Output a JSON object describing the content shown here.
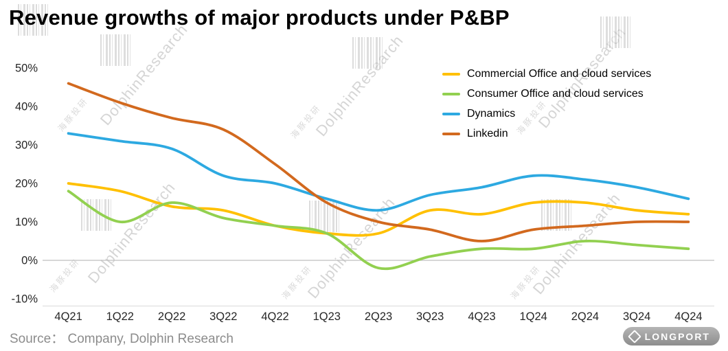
{
  "source_text": "Source： Company, Dolphin Research",
  "watermark": {
    "latin": "DolphinResearch",
    "cjk": "海豚投研"
  },
  "logo_text": "LONGPORT",
  "chart_data": {
    "type": "line",
    "title": "Revenue growths of major products under P&BP",
    "categories": [
      "4Q21",
      "1Q22",
      "2Q22",
      "3Q22",
      "4Q22",
      "1Q23",
      "2Q23",
      "3Q23",
      "4Q23",
      "1Q24",
      "2Q24",
      "3Q24",
      "4Q24"
    ],
    "series": [
      {
        "name": "Commercial Office and cloud services",
        "color": "#FFC000",
        "values": [
          20,
          18,
          14,
          13,
          9,
          7,
          7,
          13,
          12,
          15,
          15,
          13,
          12
        ]
      },
      {
        "name": "Consumer Office and cloud services",
        "color": "#92D050",
        "values": [
          18,
          10,
          15,
          11,
          9,
          7,
          -2,
          1,
          3,
          3,
          5,
          4,
          3
        ]
      },
      {
        "name": "Dynamics",
        "color": "#2DA9E1",
        "values": [
          33,
          31,
          29,
          22,
          20,
          16,
          13,
          17,
          19,
          22,
          21,
          19,
          16
        ]
      },
      {
        "name": "Linkedin",
        "color": "#D2691E",
        "values": [
          46,
          41,
          37,
          34,
          25,
          15,
          10,
          8,
          5,
          8,
          9,
          10,
          10
        ]
      }
    ],
    "yticks": [
      50,
      40,
      30,
      20,
      10,
      0,
      -10
    ],
    "ytick_suffix": "%",
    "ylim": [
      -10,
      50
    ],
    "grid": false,
    "legend_position": "top-right"
  }
}
